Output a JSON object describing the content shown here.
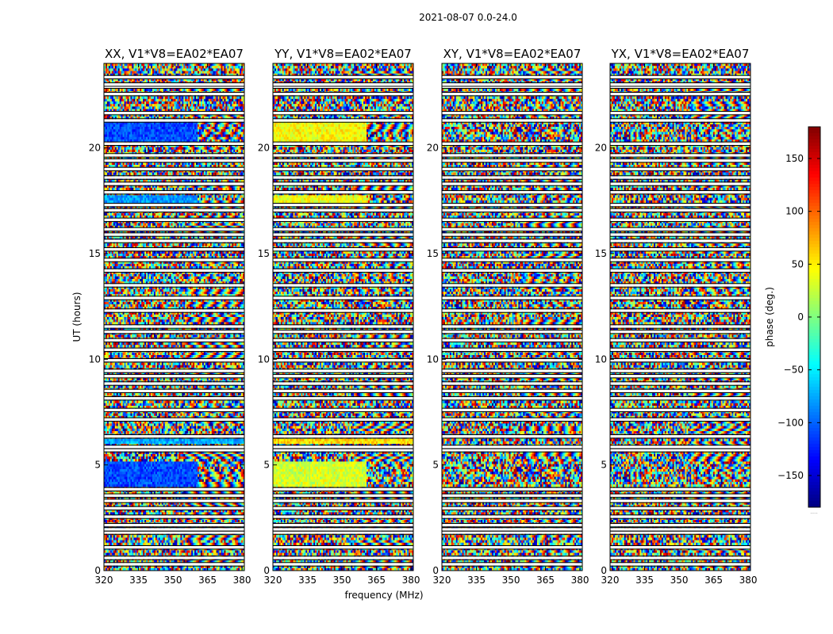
{
  "figure": {
    "suptitle": "2021-08-07 0.0-24.0",
    "xlabel": "frequency (MHz)",
    "ylabel": "UT (hours)",
    "colorbar_label": "phase (deg.)",
    "colorbar_extra": "....."
  },
  "chart_data": {
    "type": "heatmap",
    "title": "2021-08-07 0.0-24.0",
    "xlabel": "frequency (MHz)",
    "ylabel": "UT (hours)",
    "xlim": [
      320,
      381
    ],
    "ylim": [
      0,
      24
    ],
    "xticks": [
      320,
      335,
      350,
      365,
      380
    ],
    "yticks": [
      0,
      5,
      10,
      15,
      20
    ],
    "colorbar": {
      "label": "phase (deg.)",
      "range": [
        -180,
        180
      ],
      "ticks": [
        -150,
        -100,
        -50,
        0,
        50,
        100,
        150
      ],
      "colormap": "jet"
    },
    "panels": [
      {
        "title": "XX, V1*V8=EA02*EA07",
        "polarization": "XX",
        "features": [
          {
            "t_range": [
              20.3,
              21.2
            ],
            "f_range": [
              320,
              361
            ],
            "phase": -110
          },
          {
            "t_range": [
              17.4,
              17.8
            ],
            "f_range": [
              320,
              361
            ],
            "phase": -80
          },
          {
            "t_range": [
              6.0,
              6.3
            ],
            "f_range": [
              320,
              381
            ],
            "phase": -75
          },
          {
            "t_range": [
              3.9,
              5.2
            ],
            "f_range": [
              320,
              361
            ],
            "phase": -110
          }
        ]
      },
      {
        "title": "YY, V1*V8=EA02*EA07",
        "polarization": "YY",
        "features": [
          {
            "t_range": [
              20.3,
              21.2
            ],
            "f_range": [
              320,
              361
            ],
            "phase": 45
          },
          {
            "t_range": [
              17.4,
              17.8
            ],
            "f_range": [
              320,
              361
            ],
            "phase": 40
          },
          {
            "t_range": [
              6.0,
              6.3
            ],
            "f_range": [
              320,
              381
            ],
            "phase": 55
          },
          {
            "t_range": [
              3.9,
              5.2
            ],
            "f_range": [
              320,
              361
            ],
            "phase": 30
          }
        ]
      },
      {
        "title": "XY, V1*V8=EA02*EA07",
        "polarization": "XY",
        "features": []
      },
      {
        "title": "YX, V1*V8=EA02*EA07",
        "polarization": "YX",
        "features": []
      }
    ],
    "flagged_gaps_ut": [
      0.3,
      0.6,
      1.1,
      1.8,
      1.95,
      2.15,
      2.55,
      2.95,
      3.3,
      3.55,
      3.85,
      5.7,
      5.85,
      6.35,
      7.15,
      7.6,
      8.15,
      8.5,
      8.85,
      9.2,
      9.45,
      9.95,
      10.45,
      10.9,
      11.3,
      11.55,
      12.3,
      12.9,
      13.5,
      14.2,
      14.7,
      15.2,
      15.6,
      15.9,
      16.15,
      16.6,
      17.05,
      17.3,
      17.9,
      18.3,
      18.6,
      19.0,
      19.4,
      19.65,
      20.2,
      21.3,
      21.65,
      22.55,
      22.9,
      23.0,
      23.35
    ]
  }
}
